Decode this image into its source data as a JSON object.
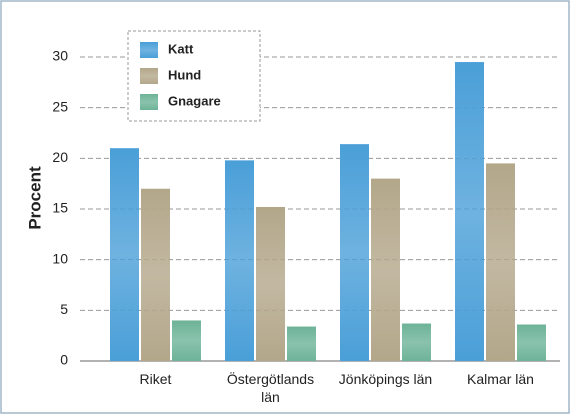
{
  "chart_data": {
    "type": "bar",
    "y_label": "Procent",
    "categories": [
      "Riket",
      "Östergötlands län",
      "Jönköpings län",
      "Kalmar län"
    ],
    "series": [
      {
        "name": "Katt",
        "color": "#4a9fd8",
        "values": [
          21,
          19.8,
          21.4,
          29.5
        ]
      },
      {
        "name": "Hund",
        "color": "#b3a78a",
        "values": [
          17,
          15.2,
          18,
          19.5
        ]
      },
      {
        "name": "Gnagare",
        "color": "#6db398",
        "values": [
          4,
          3.4,
          3.7,
          3.6
        ]
      }
    ],
    "ylim": [
      0,
      30
    ],
    "yticks": [
      0,
      5,
      10,
      15,
      20,
      25,
      30
    ],
    "grid": true
  }
}
